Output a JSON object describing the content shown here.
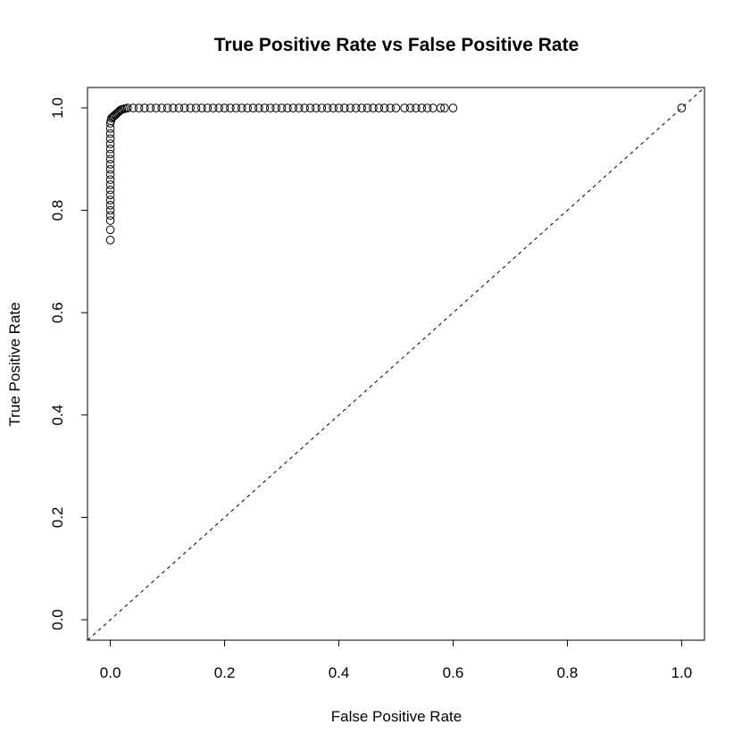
{
  "chart_data": {
    "type": "scatter",
    "title": "True Positive Rate vs False Positive Rate",
    "xlabel": "False Positive Rate",
    "ylabel": "True Positive Rate",
    "xlim": [
      -0.04,
      1.04
    ],
    "ylim": [
      -0.04,
      1.04
    ],
    "x_ticks": [
      0.0,
      0.2,
      0.4,
      0.6,
      0.8,
      1.0
    ],
    "x_tick_labels": [
      "0.0",
      "0.2",
      "0.4",
      "0.6",
      "0.8",
      "1.0"
    ],
    "y_ticks": [
      0.0,
      0.2,
      0.4,
      0.6,
      0.8,
      1.0
    ],
    "y_tick_labels": [
      "0.0",
      "0.2",
      "0.4",
      "0.6",
      "0.8",
      "1.0"
    ],
    "grid": false,
    "legend": "none",
    "marker": "open-circle",
    "reference_line": {
      "style": "dashed",
      "intercept": 0,
      "slope": 1
    },
    "points": [
      [
        0.0,
        0.742
      ],
      [
        0.0,
        0.762
      ],
      [
        0.0,
        0.78
      ],
      [
        0.0,
        0.79
      ],
      [
        0.0,
        0.8
      ],
      [
        0.0,
        0.81
      ],
      [
        0.0,
        0.82
      ],
      [
        0.0,
        0.83
      ],
      [
        0.0,
        0.84
      ],
      [
        0.0,
        0.85
      ],
      [
        0.0,
        0.86
      ],
      [
        0.0,
        0.87
      ],
      [
        0.0,
        0.88
      ],
      [
        0.0,
        0.89
      ],
      [
        0.0,
        0.9
      ],
      [
        0.0,
        0.91
      ],
      [
        0.0,
        0.92
      ],
      [
        0.0,
        0.93
      ],
      [
        0.0,
        0.94
      ],
      [
        0.0,
        0.95
      ],
      [
        0.0,
        0.96
      ],
      [
        0.0,
        0.97
      ],
      [
        0.001,
        0.975
      ],
      [
        0.002,
        0.98
      ],
      [
        0.004,
        0.982
      ],
      [
        0.006,
        0.984
      ],
      [
        0.008,
        0.986
      ],
      [
        0.01,
        0.988
      ],
      [
        0.012,
        0.99
      ],
      [
        0.014,
        0.992
      ],
      [
        0.016,
        0.994
      ],
      [
        0.018,
        0.996
      ],
      [
        0.02,
        0.997
      ],
      [
        0.023,
        0.998
      ],
      [
        0.026,
        0.999
      ],
      [
        0.03,
        1.0
      ],
      [
        0.04,
        1.0
      ],
      [
        0.05,
        1.0
      ],
      [
        0.06,
        1.0
      ],
      [
        0.07,
        1.0
      ],
      [
        0.08,
        1.0
      ],
      [
        0.09,
        1.0
      ],
      [
        0.1,
        1.0
      ],
      [
        0.11,
        1.0
      ],
      [
        0.12,
        1.0
      ],
      [
        0.13,
        1.0
      ],
      [
        0.14,
        1.0
      ],
      [
        0.15,
        1.0
      ],
      [
        0.16,
        1.0
      ],
      [
        0.17,
        1.0
      ],
      [
        0.18,
        1.0
      ],
      [
        0.19,
        1.0
      ],
      [
        0.2,
        1.0
      ],
      [
        0.21,
        1.0
      ],
      [
        0.22,
        1.0
      ],
      [
        0.23,
        1.0
      ],
      [
        0.24,
        1.0
      ],
      [
        0.25,
        1.0
      ],
      [
        0.26,
        1.0
      ],
      [
        0.27,
        1.0
      ],
      [
        0.28,
        1.0
      ],
      [
        0.29,
        1.0
      ],
      [
        0.3,
        1.0
      ],
      [
        0.31,
        1.0
      ],
      [
        0.32,
        1.0
      ],
      [
        0.33,
        1.0
      ],
      [
        0.34,
        1.0
      ],
      [
        0.35,
        1.0
      ],
      [
        0.36,
        1.0
      ],
      [
        0.37,
        1.0
      ],
      [
        0.38,
        1.0
      ],
      [
        0.39,
        1.0
      ],
      [
        0.4,
        1.0
      ],
      [
        0.41,
        1.0
      ],
      [
        0.42,
        1.0
      ],
      [
        0.43,
        1.0
      ],
      [
        0.44,
        1.0
      ],
      [
        0.45,
        1.0
      ],
      [
        0.46,
        1.0
      ],
      [
        0.47,
        1.0
      ],
      [
        0.48,
        1.0
      ],
      [
        0.49,
        1.0
      ],
      [
        0.5,
        1.0
      ],
      [
        0.515,
        1.0
      ],
      [
        0.525,
        1.0
      ],
      [
        0.535,
        1.0
      ],
      [
        0.545,
        1.0
      ],
      [
        0.555,
        1.0
      ],
      [
        0.565,
        1.0
      ],
      [
        0.578,
        1.0
      ],
      [
        0.585,
        1.0
      ],
      [
        0.6,
        1.0
      ],
      [
        1.0,
        1.0
      ]
    ]
  }
}
